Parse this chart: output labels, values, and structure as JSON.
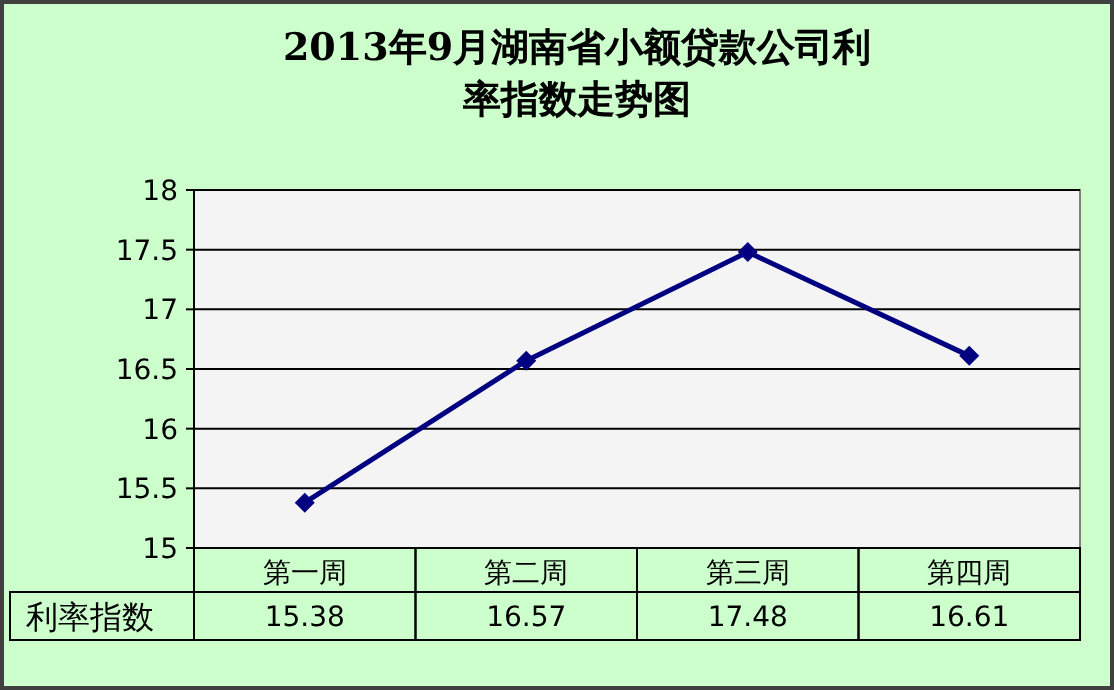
{
  "chart_data": {
    "type": "line",
    "title": "2013年9月湖南省小额贷款公司利率指数走势图",
    "categories": [
      "第一周",
      "第二周",
      "第三周",
      "第四周"
    ],
    "series": [
      {
        "name": "利率指数",
        "color": "#000080",
        "values": [
          15.38,
          16.57,
          17.48,
          16.61
        ]
      }
    ],
    "ylim": [
      15,
      18
    ],
    "yticks": [
      15,
      {
        "value": 15.5,
        "label": "15.5"
      },
      16,
      {
        "value": 16.5,
        "label": "16.5"
      },
      17,
      {
        "value": 17.5,
        "label": "17.5"
      },
      18
    ],
    "grid": "y",
    "marker": "diamond",
    "line_style": "solid",
    "data_labels": true
  }
}
